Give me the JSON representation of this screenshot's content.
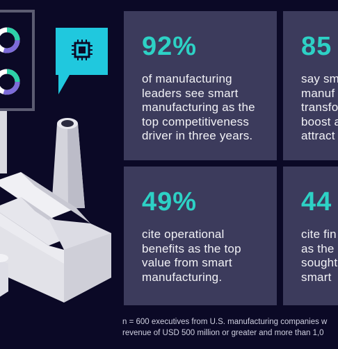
{
  "colors": {
    "background": "#0b0926",
    "card": "#3c3b5c",
    "accent": "#2dd1c5",
    "text": "#f2f2f6"
  },
  "icons": {
    "chip": "chip-icon",
    "donut": "donut-chart-icon",
    "factory": "factory-illustration"
  },
  "cards": [
    {
      "stat": "92%",
      "lines": [
        "of manufacturing",
        "leaders see smart",
        "manufacturing as the",
        "top competitiveness",
        "driver in three years."
      ]
    },
    {
      "stat": "85",
      "lines": [
        "say sm",
        "manuf",
        "transfo",
        "boost a",
        "attract"
      ]
    },
    {
      "stat": "49%",
      "lines": [
        "cite operational",
        "benefits as the top",
        "value from smart",
        "manufacturing."
      ]
    },
    {
      "stat": "44",
      "lines": [
        "cite fin",
        "as the",
        "sought",
        "smart"
      ]
    }
  ],
  "footnote": {
    "line1": "n = 600 executives from U.S. manufacturing companies w",
    "line2": "revenue of USD 500 million or greater and more than 1,0"
  }
}
